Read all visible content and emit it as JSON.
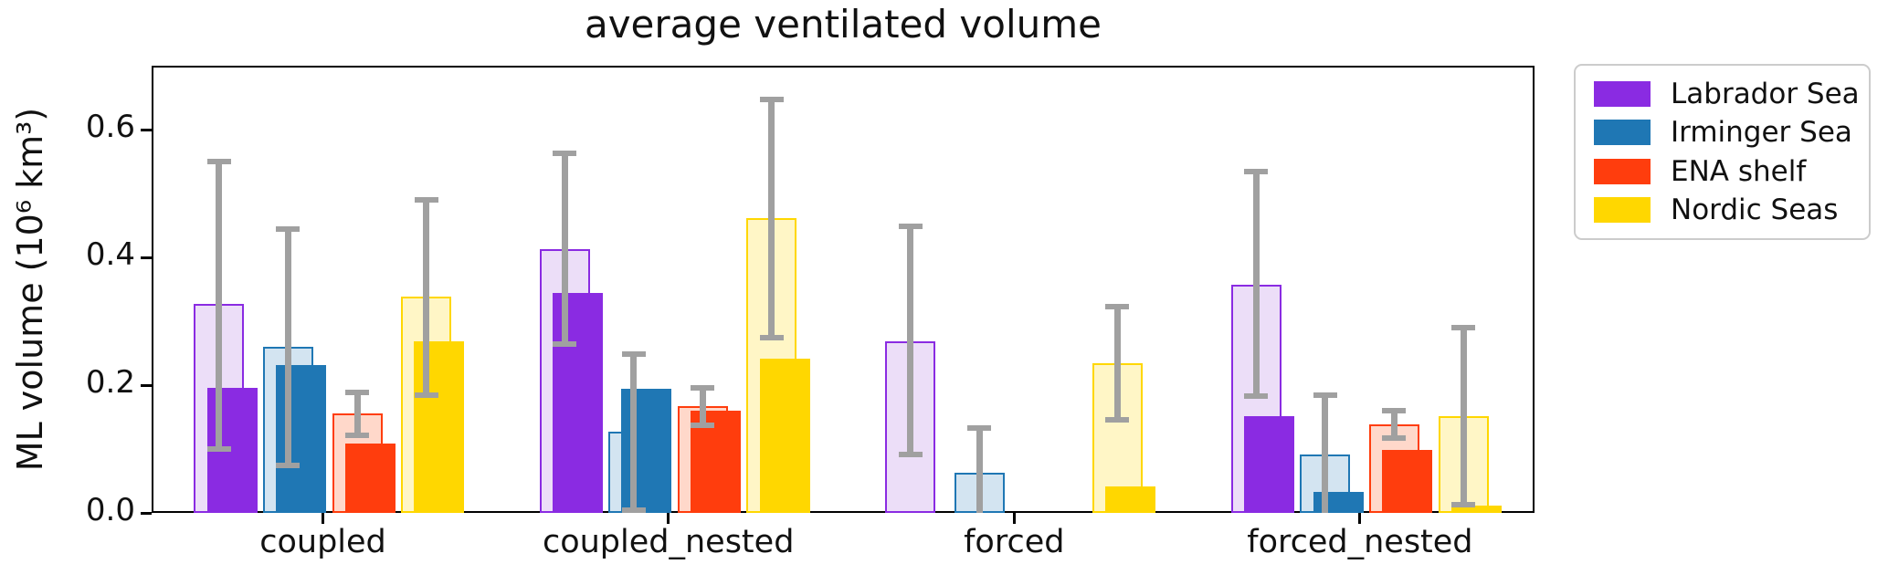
{
  "title": "average ventilated volume",
  "ylabel": "ML volume (10⁶ km³)",
  "chart_data": {
    "type": "bar",
    "title": "average ventilated volume",
    "ylabel": "ML volume (10⁶ km³)",
    "categories": [
      "coupled",
      "coupled_nested",
      "forced",
      "forced_nested"
    ],
    "ylim": [
      0.0,
      0.7
    ],
    "yticks": [
      0.0,
      0.2,
      0.4,
      0.6
    ],
    "ytick_labels": [
      "0.0",
      "0.2",
      "0.4",
      "0.6"
    ],
    "grid": false,
    "legend_position": "outside-right",
    "error_bar_color": "#a0a0a0",
    "series": [
      {
        "name": "Labrador Sea",
        "color": "#8a2be2",
        "light_color": "#ecdef8",
        "light_values": [
          0.327,
          0.413,
          0.269,
          0.357
        ],
        "solid_values": [
          0.196,
          0.345,
          null,
          0.152
        ],
        "err_low": [
          0.1,
          0.265,
          0.091,
          0.183
        ],
        "err_high": [
          0.55,
          0.563,
          0.449,
          0.534
        ]
      },
      {
        "name": "Irminger Sea",
        "color": "#1f77b4",
        "light_color": "#d3e4f1",
        "light_values": [
          0.26,
          0.127,
          0.063,
          0.091
        ],
        "solid_values": [
          0.232,
          0.194,
          null,
          0.033
        ],
        "err_low": [
          0.075,
          0.005,
          0.0,
          0.0
        ],
        "err_high": [
          0.445,
          0.248,
          0.133,
          0.184
        ]
      },
      {
        "name": "ENA shelf",
        "color": "#ff3d0d",
        "light_color": "#ffd8ca",
        "light_values": [
          0.156,
          0.167,
          null,
          0.138
        ],
        "solid_values": [
          0.108,
          0.16,
          null,
          0.099
        ],
        "err_low": [
          0.122,
          0.137,
          null,
          0.117
        ],
        "err_high": [
          0.188,
          0.196,
          null,
          0.16
        ]
      },
      {
        "name": "Nordic Seas",
        "color": "#ffd700",
        "light_color": "#fff6c6",
        "light_values": [
          0.338,
          0.461,
          0.235,
          0.151
        ],
        "solid_values": [
          0.268,
          0.242,
          0.041,
          0.012
        ],
        "err_low": [
          0.185,
          0.274,
          0.146,
          0.013
        ],
        "err_high": [
          0.49,
          0.647,
          0.323,
          0.29
        ]
      }
    ]
  }
}
